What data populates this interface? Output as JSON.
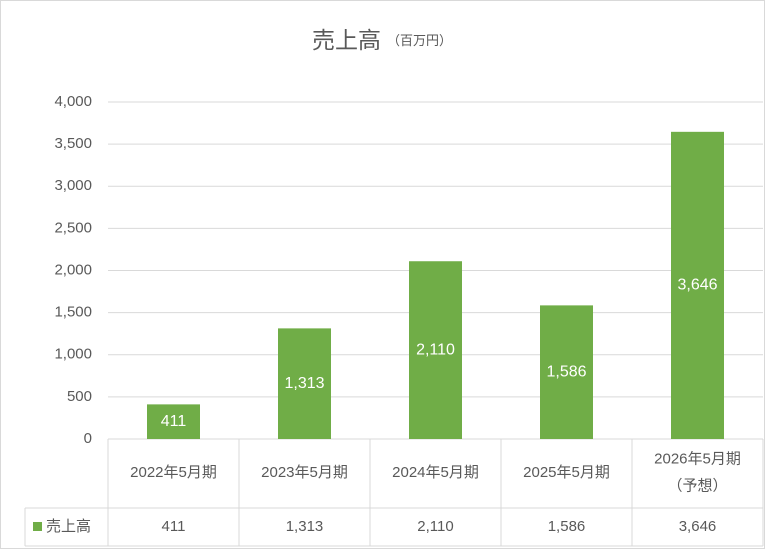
{
  "chart_data": {
    "type": "bar",
    "title": "売上高",
    "subtitle": "（百万円）",
    "categories": [
      "2022年5月期",
      "2023年5月期",
      "2024年5月期",
      "2025年5月期",
      [
        "2026年5月期",
        "（予想）"
      ]
    ],
    "series": [
      {
        "name": "売上高",
        "color": "#70ad47",
        "values": [
          411,
          1313,
          2110,
          1586,
          3646
        ],
        "value_labels": [
          "411",
          "1,313",
          "2,110",
          "1,586",
          "3,646"
        ]
      }
    ],
    "ylim": [
      0,
      4000
    ],
    "yticks": [
      0,
      500,
      {
        "value": 1000,
        "label": "1,000"
      },
      {
        "value": 1500,
        "label": "1,500"
      },
      {
        "value": 2000,
        "label": "2,000"
      },
      {
        "value": 2500,
        "label": "2,500"
      },
      {
        "value": 3000,
        "label": "3,000"
      },
      {
        "value": 3500,
        "label": "3,500"
      },
      {
        "value": 4000,
        "label": "4,000"
      }
    ],
    "grid": true,
    "data_table": true
  }
}
